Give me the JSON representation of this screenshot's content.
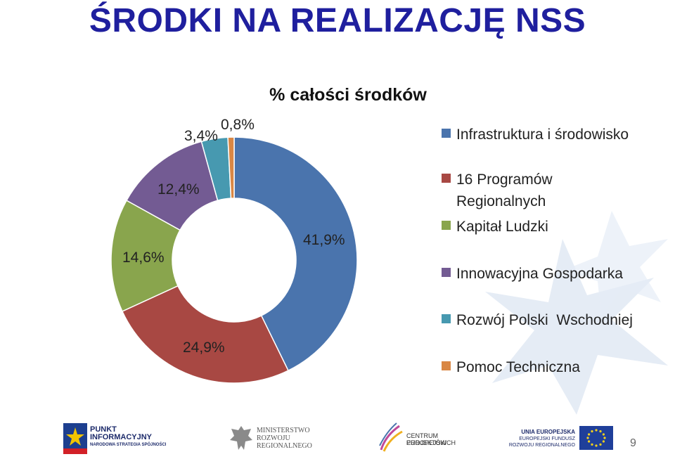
{
  "slide_title": "ŚRODKI NA REALIZACJĘ NSS",
  "page_number": "9",
  "chart_data": {
    "type": "pie",
    "subtype": "doughnut",
    "title": "% całości środków",
    "legend_position": "right",
    "categories": [
      "Infrastruktura i środowisko",
      "16 Programów Regionalnych",
      "Kapitał Ludzki",
      "Innowacyjna Gospodarka",
      "Rozwój Polski  Wschodniej",
      "Pomoc Techniczna"
    ],
    "values": [
      41.9,
      24.9,
      14.6,
      12.4,
      3.4,
      0.8
    ],
    "data_labels": [
      "41,9%",
      "24,9%",
      "14,6%",
      "12,4%",
      "3,4%",
      "0,8%"
    ],
    "colors": [
      "#4a74ad",
      "#a84843",
      "#89a54d",
      "#735b93",
      "#4799b0",
      "#d98744"
    ]
  },
  "footer": {
    "logo1": {
      "line1": "PUNKT",
      "line2": "INFORMACYJNY",
      "line3": "NARODOWA STRATEGIA SPÓJNOŚCI"
    },
    "logo2": {
      "line1": "MINISTERSTWO",
      "line2": "ROZWOJU",
      "line3": "REGIONALNEGO"
    },
    "logo3": {
      "line1": "CENTRUM PROJEKTÓW",
      "line2": "EUROPEJSKICH"
    },
    "logo4": {
      "line1": "UNIA EUROPEJSKA",
      "line2": "EUROPEJSKI FUNDUSZ",
      "line3": "ROZWOJU REGIONALNEGO"
    }
  },
  "icons": [
    "eu-flag-icon",
    "eagle-emblem-icon",
    "star-swirl-icon",
    "punkt-logo-icon"
  ]
}
